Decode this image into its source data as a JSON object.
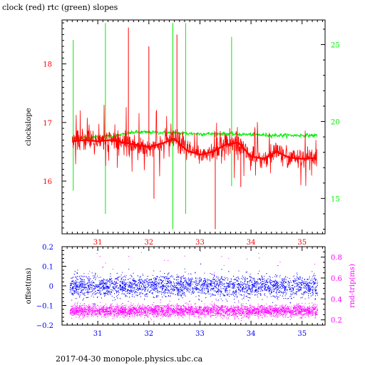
{
  "header": {
    "title": "clock (red) rtc (green) slopes"
  },
  "footer": {
    "text": "2017-04-30 monopole.physics.ubc.ca"
  },
  "colors": {
    "red": "#ff0000",
    "green": "#00ee00",
    "blue": "#0000ff",
    "magenta": "#ff00ff",
    "axis": "#000000"
  },
  "chart_data": [
    {
      "type": "line",
      "title": "clock (red) rtc (green) slopes",
      "xlabel": "",
      "ylabel": "clockslope",
      "xlim": [
        30.3,
        35.45
      ],
      "ylim": [
        15.1,
        18.75
      ],
      "y2lim": [
        12.7,
        26.6
      ],
      "x_ticks": [
        31,
        32,
        33,
        34,
        35
      ],
      "y_ticks": [
        16,
        17,
        18
      ],
      "y2_ticks": [
        15,
        20,
        25
      ],
      "grid": false,
      "series": [
        {
          "name": "clock",
          "axis": "left",
          "color": "#ff0000",
          "x": [
            30.5,
            30.75,
            31.0,
            31.25,
            31.5,
            31.75,
            32.0,
            32.25,
            32.5,
            32.75,
            33.0,
            33.25,
            33.5,
            33.75,
            34.0,
            34.25,
            34.5,
            34.75,
            35.0,
            35.3
          ],
          "values": [
            16.68,
            16.7,
            16.68,
            16.7,
            16.66,
            16.62,
            16.58,
            16.64,
            16.72,
            16.52,
            16.45,
            16.5,
            16.62,
            16.66,
            16.42,
            16.38,
            16.5,
            16.4,
            16.38,
            16.4
          ],
          "spikes": [
            {
              "x": 31.6,
              "y": 18.62
            },
            {
              "x": 32.0,
              "y": 18.3
            },
            {
              "x": 32.55,
              "y": 18.5
            },
            {
              "x": 33.3,
              "y": 15.18
            },
            {
              "x": 32.1,
              "y": 15.7
            },
            {
              "x": 33.8,
              "y": 15.9
            }
          ]
        },
        {
          "name": "rtc",
          "axis": "right",
          "color": "#00ee00",
          "x": [
            30.5,
            30.8,
            31.1,
            31.4,
            31.7,
            32.0,
            32.5,
            33.0,
            33.5,
            34.0,
            34.5,
            35.0,
            35.3
          ],
          "values": [
            18.9,
            18.95,
            19.0,
            19.1,
            19.3,
            19.3,
            19.25,
            19.2,
            19.2,
            19.15,
            19.1,
            19.1,
            19.1
          ],
          "spikes": [
            {
              "x": 30.52,
              "y": 25.3
            },
            {
              "x": 30.52,
              "y": 15.5
            },
            {
              "x": 31.15,
              "y": 26.4
            },
            {
              "x": 31.15,
              "y": 14.0
            },
            {
              "x": 32.47,
              "y": 26.4
            },
            {
              "x": 32.47,
              "y": 13.0
            },
            {
              "x": 32.72,
              "y": 26.4
            },
            {
              "x": 32.72,
              "y": 14.0
            },
            {
              "x": 33.62,
              "y": 25.5
            },
            {
              "x": 33.62,
              "y": 15.8
            }
          ]
        }
      ]
    },
    {
      "type": "scatter",
      "title": "",
      "xlabel": "",
      "ylabel": "offset(ms)",
      "y2label": "rnd-trip(ms)",
      "xlim": [
        30.3,
        35.45
      ],
      "ylim": [
        -0.2,
        0.2
      ],
      "y2lim": [
        0.15,
        0.9
      ],
      "x_ticks": [
        31,
        32,
        33,
        34,
        35
      ],
      "y_ticks": [
        -0.2,
        -0.1,
        0,
        0.1,
        0.2
      ],
      "y_tick_labels": [
        "−0.2",
        "−0.1",
        "0",
        "0.1",
        "0.2"
      ],
      "y2_ticks": [
        0.2,
        0.4,
        0.6,
        0.8
      ],
      "grid": false,
      "series": [
        {
          "name": "offset",
          "axis": "left",
          "color": "#0000ff",
          "x_range": [
            30.45,
            35.3
          ],
          "center": 0.0,
          "spread": 0.055,
          "outlier_max": 0.12
        },
        {
          "name": "rnd-trip",
          "axis": "right",
          "color": "#ff00ff",
          "x_range": [
            30.45,
            35.3
          ],
          "center": 0.29,
          "spread": 0.05,
          "outlier_max": 0.87
        }
      ]
    }
  ]
}
